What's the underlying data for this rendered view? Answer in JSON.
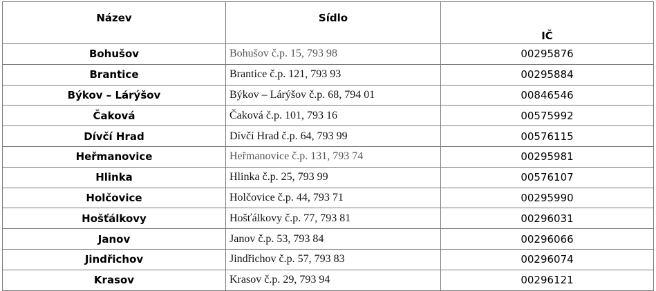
{
  "table": {
    "headers": [
      "Název",
      "Sídlo",
      "IČ"
    ],
    "rows": [
      {
        "name": "Bohušov",
        "address": "Bohušov č.p. 15, 793 98",
        "ic": "00295876",
        "address_gray": true
      },
      {
        "name": "Brantice",
        "address": "Brantice č.p. 121, 793 93",
        "ic": "00295884"
      },
      {
        "name": "Býkov – Lárýšov",
        "address": "Býkov – Lárýšov č.p. 68, 794 01",
        "ic": "00846546"
      },
      {
        "name": "Čaková",
        "address": "Čaková č.p. 101, 793 16",
        "ic": "00575992"
      },
      {
        "name": "Dívčí Hrad",
        "address": "Dívčí Hrad č.p. 64, 793 99",
        "ic": "00576115"
      },
      {
        "name": "Heřmanovice",
        "address": "Heřmanovice č.p. 131, 793  74",
        "ic": "00295981",
        "address_gray": true
      },
      {
        "name": "Hlinka",
        "address": "Hlinka č.p. 25, 793 99",
        "ic": "00576107"
      },
      {
        "name": "Holčovice",
        "address": "Holčovice č.p. 44, 793 71",
        "ic": "00295990"
      },
      {
        "name": "Hošťálkovy",
        "address": "Hošťálkovy č.p. 77, 793 81",
        "ic": "00296031"
      },
      {
        "name": "Janov",
        "address": "Janov č.p. 53, 793 84",
        "ic": "00296066"
      },
      {
        "name": "Jindřichov",
        "address": "Jindřichov č.p. 57, 793 83",
        "ic": "00296074"
      },
      {
        "name": "Krasov",
        "address": "Krasov č.p. 29, 793 94",
        "ic": "00296121"
      }
    ]
  }
}
